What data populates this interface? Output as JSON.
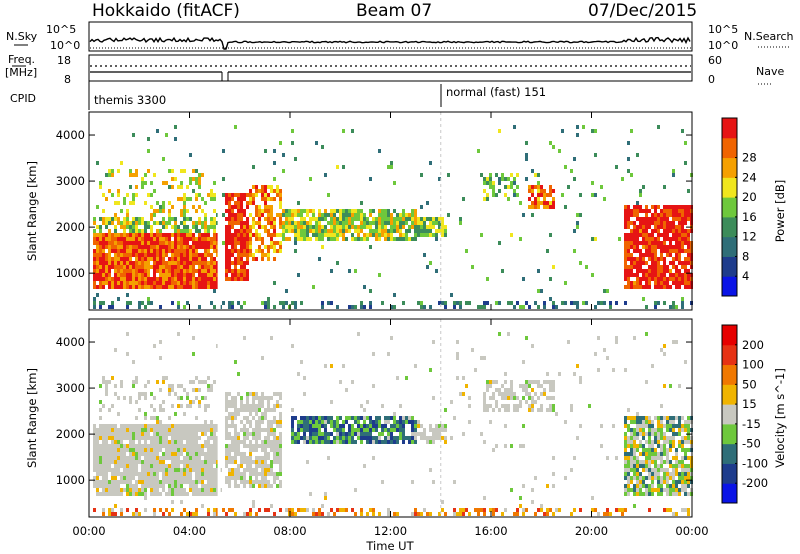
{
  "header": {
    "title_left": "Hokkaido (fitACF)",
    "title_center": "Beam 07",
    "title_right": "07/Dec/2015"
  },
  "strip_labels": {
    "nsky": "N.Sky",
    "nsearch": "N.Search",
    "freq": "Freq.",
    "freq_unit": "[MHz]",
    "cpid": "CPID",
    "nave": "Nave"
  },
  "strip_ticks": {
    "noise_left": [
      "10^5",
      "10^0"
    ],
    "noise_right": [
      "10^5",
      "10^0"
    ],
    "freq_left": [
      "18",
      "8"
    ],
    "nave_right": [
      "60",
      "0"
    ]
  },
  "cpid_modes": [
    {
      "label": "themis 3300",
      "start_hour": 0.0
    },
    {
      "label": "normal (fast) 151",
      "start_hour": 14.0
    }
  ],
  "colors": {
    "power_scale": [
      "#0a14e6",
      "#1e3c8c",
      "#2f6e78",
      "#3c8c5a",
      "#6ec83c",
      "#f0e61e",
      "#f5a000",
      "#f06400",
      "#e61414"
    ],
    "velocity_scale": [
      "#0a14e6",
      "#1e3c8c",
      "#2f6e78",
      "#6ec83c",
      "#c8c8c0",
      "#f0b400",
      "#f07800",
      "#e63214",
      "#e60000"
    ],
    "ground_scatter": "#c8c8c0"
  },
  "chart_data": [
    {
      "type": "heatmap",
      "name": "power",
      "xlabel": "",
      "ylabel": "Slant Range [km]",
      "x_range_hours": [
        0,
        24
      ],
      "y_range_km": [
        200,
        4500
      ],
      "y_ticks": [
        "1000",
        "2000",
        "3000",
        "4000"
      ],
      "colorbar_label": "Power [dB]",
      "colorbar_ticks": [
        "4",
        "8",
        "12",
        "16",
        "20",
        "24",
        "28"
      ],
      "regions": [
        {
          "t0": 0.1,
          "t1": 5.1,
          "r0": 700,
          "r1": 1900,
          "level": 0.85,
          "density": 0.95
        },
        {
          "t0": 0.1,
          "t1": 5.1,
          "r0": 1800,
          "r1": 2300,
          "level": 0.55,
          "density": 0.65
        },
        {
          "t0": 0.3,
          "t1": 5.0,
          "r0": 2300,
          "r1": 3300,
          "level": 0.6,
          "density": 0.25
        },
        {
          "t0": 5.3,
          "t1": 6.3,
          "r0": 900,
          "r1": 2800,
          "level": 0.95,
          "density": 0.9
        },
        {
          "t0": 6.3,
          "t1": 7.6,
          "r0": 1300,
          "r1": 3000,
          "level": 0.75,
          "density": 0.6
        },
        {
          "t0": 7.6,
          "t1": 13.0,
          "r0": 1700,
          "r1": 2400,
          "level": 0.55,
          "density": 0.85
        },
        {
          "t0": 9.5,
          "t1": 12.0,
          "r0": 2000,
          "r1": 2200,
          "level": 0.85,
          "density": 0.6
        },
        {
          "t0": 13.0,
          "t1": 14.2,
          "r0": 1850,
          "r1": 2300,
          "level": 0.5,
          "density": 0.75
        },
        {
          "t0": 15.6,
          "t1": 17.0,
          "r0": 2600,
          "r1": 3200,
          "level": 0.45,
          "density": 0.5
        },
        {
          "t0": 17.4,
          "t1": 18.5,
          "r0": 2400,
          "r1": 3000,
          "level": 0.8,
          "density": 0.75
        },
        {
          "t0": 21.2,
          "t1": 24.0,
          "r0": 700,
          "r1": 2500,
          "level": 0.95,
          "density": 0.85
        },
        {
          "t0": 0.1,
          "t1": 24.0,
          "r0": 200,
          "r1": 400,
          "level": 0.3,
          "density": 0.35
        },
        {
          "t0": 0.1,
          "t1": 24.0,
          "r0": 400,
          "r1": 4300,
          "level": 0.4,
          "density": 0.025
        }
      ]
    },
    {
      "type": "heatmap",
      "name": "velocity",
      "xlabel": "Time UT",
      "ylabel": "Slant Range [km]",
      "x_range_hours": [
        0,
        24
      ],
      "x_ticks": [
        "00:00",
        "04:00",
        "08:00",
        "12:00",
        "16:00",
        "20:00",
        "00:00"
      ],
      "y_range_km": [
        200,
        4500
      ],
      "y_ticks": [
        "1000",
        "2000",
        "3000",
        "4000"
      ],
      "colorbar_label": "Velocity [m s^-1]",
      "colorbar_ticks": [
        "200",
        "100",
        "50",
        "15",
        "-15",
        "-50",
        "-100",
        "-200"
      ],
      "regions": [
        {
          "t0": 0.1,
          "t1": 5.1,
          "r0": 700,
          "r1": 2300,
          "level": 0.5,
          "density": 0.9
        },
        {
          "t0": 0.3,
          "t1": 5.0,
          "r0": 2300,
          "r1": 3300,
          "level": 0.5,
          "density": 0.25
        },
        {
          "t0": 5.3,
          "t1": 7.6,
          "r0": 900,
          "r1": 3000,
          "level": 0.5,
          "density": 0.7
        },
        {
          "t0": 8.0,
          "t1": 13.0,
          "r0": 1800,
          "r1": 2400,
          "level": 0.3,
          "density": 0.85
        },
        {
          "t0": 13.0,
          "t1": 14.2,
          "r0": 1850,
          "r1": 2300,
          "level": 0.5,
          "density": 0.7
        },
        {
          "t0": 15.6,
          "t1": 18.5,
          "r0": 2500,
          "r1": 3200,
          "level": 0.5,
          "density": 0.5
        },
        {
          "t0": 21.2,
          "t1": 24.0,
          "r0": 700,
          "r1": 2400,
          "level": 0.45,
          "density": 0.8
        },
        {
          "t0": 0.1,
          "t1": 24.0,
          "r0": 200,
          "r1": 450,
          "level": 0.68,
          "density": 0.4
        },
        {
          "t0": 0.1,
          "t1": 24.0,
          "r0": 450,
          "r1": 4300,
          "level": 0.5,
          "density": 0.025
        }
      ]
    }
  ]
}
